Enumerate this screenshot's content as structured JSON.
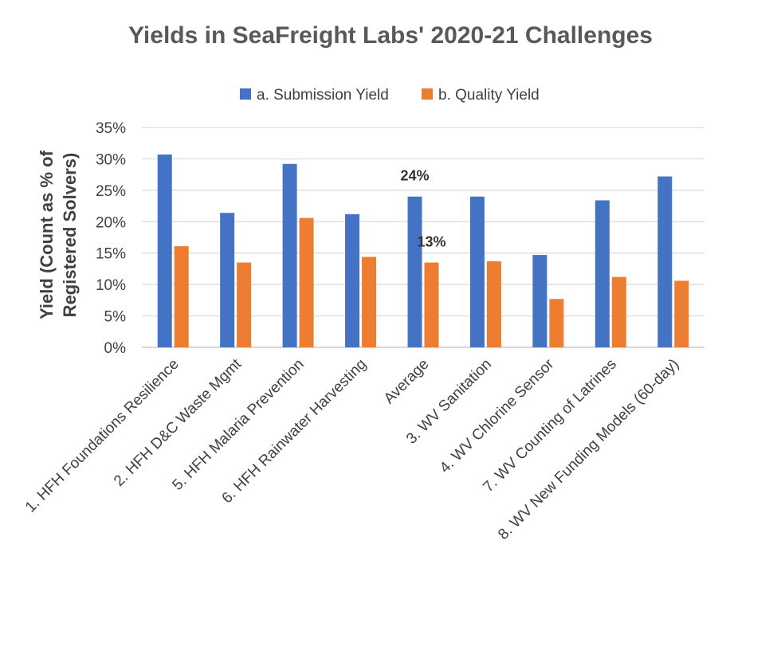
{
  "chart_data": {
    "type": "bar",
    "title": "Yields in SeaFreight Labs' 2020-21 Challenges",
    "ylabel_lines": [
      "Yield (Count as % of",
      "Registered Solvers)"
    ],
    "xlabel": "",
    "ylim": [
      0,
      35
    ],
    "yticks": [
      "0%",
      "5%",
      "10%",
      "15%",
      "20%",
      "25%",
      "30%",
      "35%"
    ],
    "grid": true,
    "legend_position": "top-center",
    "categories": [
      "1. HFH Foundations Resilience",
      "2. HFH D&C Waste Mgmt",
      "5. HFH Malaria Prevention",
      "6. HFH Rainwater Harvesting",
      "Average",
      "3. WV Sanitation",
      "4. WV Chlorine Sensor",
      "7. WV Counting of Latrines",
      "8. WV New Funding Models (60-day)"
    ],
    "series": [
      {
        "name": "a. Submission Yield",
        "color": "#4472C4",
        "values": [
          30.7,
          21.4,
          29.2,
          21.2,
          24.0,
          24.0,
          14.7,
          23.4,
          27.2
        ]
      },
      {
        "name": "b. Quality Yield",
        "color": "#ED7D31",
        "values": [
          16.1,
          13.5,
          20.6,
          14.4,
          13.5,
          13.7,
          7.7,
          11.2,
          10.6
        ]
      }
    ],
    "data_labels": [
      {
        "series": 0,
        "category": 4,
        "text": "24%"
      },
      {
        "series": 1,
        "category": 4,
        "text": "13%"
      }
    ]
  }
}
